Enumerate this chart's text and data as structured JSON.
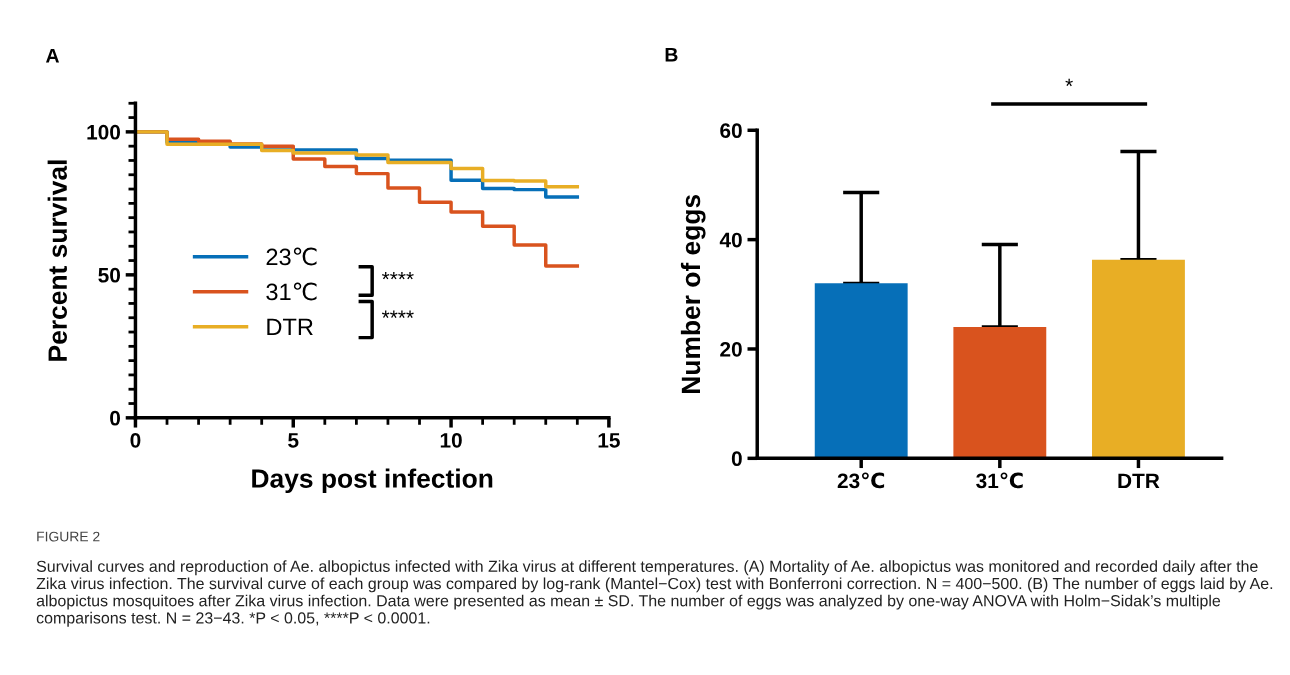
{
  "chart_data": [
    {
      "type": "step",
      "title": "A",
      "xlabel": "Days post infection",
      "ylabel": "Percent survival",
      "x": [
        0,
        1,
        2,
        3,
        4,
        5,
        6,
        7,
        8,
        9,
        10,
        11,
        12,
        13,
        14
      ],
      "series": [
        {
          "name": "23℃",
          "color": "#066fb8",
          "values": [
            100,
            96.4,
            96.4,
            94.7,
            94.7,
            93.7,
            93.7,
            90.7,
            90.1,
            90.1,
            83.1,
            80.2,
            79.8,
            77.2,
            77.2
          ]
        },
        {
          "name": "31℃",
          "color": "#d9531e",
          "values": [
            100,
            97.4,
            96.7,
            95.8,
            95.0,
            90.5,
            87.9,
            85.4,
            80.4,
            75.4,
            72.0,
            67.0,
            60.4,
            53.1,
            53.1
          ]
        },
        {
          "name": "DTR",
          "color": "#e8ae25",
          "values": [
            100,
            95.7,
            95.7,
            95.7,
            93.5,
            92.6,
            92.6,
            91.9,
            89.3,
            89.3,
            87.2,
            83.0,
            82.8,
            80.8,
            80.8
          ]
        }
      ],
      "xlim": [
        0,
        15
      ],
      "xticks": [
        0,
        5,
        10,
        15
      ],
      "ylim": [
        0,
        110
      ],
      "yticks": [
        0,
        50,
        100
      ],
      "legend": "lower left",
      "grid": false,
      "line_style": "solid",
      "annotations": [
        "****",
        "****",
        "FIGURE 2",
        "Survival curves and reproduction of Ae. albopictus infected with Zika virus at different temperatures. (A) Mortality of Ae. albopictus was monitored and recorded daily after the Zika virus infection. The survival curve of each group was compared by log-rank (Mantel−Cox) test with Bonferroni correction. N = 400−500. (B) The number of eggs laid by Ae. albopictus mosquitoes after Zika virus infection. Data were presented as mean ± SD. The number of eggs was analyzed by one-way ANOVA with Holm−Sidak’s multiple comparisons test. N = 23−43. *P < 0.05, ****P < 0.0001."
      ]
    },
    {
      "type": "bar",
      "title": "B",
      "ylabel": "Number of eggs",
      "categories": [
        "23℃",
        "31℃",
        "DTR"
      ],
      "values": [
        32.0,
        24.0,
        36.3
      ],
      "colors": [
        "#066fb8",
        "#d9531e",
        "#e8ae25"
      ],
      "errors": [
        [
          32.0,
          48.6
        ],
        [
          24.0,
          39.1
        ],
        [
          36.3,
          56.1
        ]
      ],
      "ylim": [
        0,
        60
      ],
      "yticks": [
        0,
        20,
        40,
        60
      ],
      "grid": false,
      "annotations": [
        "*"
      ]
    }
  ]
}
